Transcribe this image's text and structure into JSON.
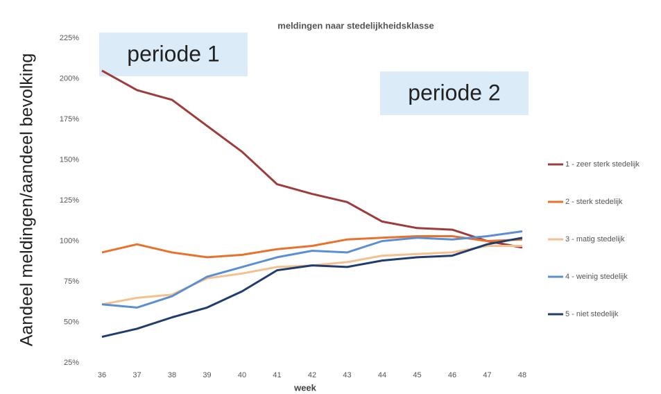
{
  "chart_data": {
    "type": "line",
    "title": "meldingen naar stedelijkheidsklasse",
    "x_label": "week",
    "y_label": "Aandeel meldingen/aandeel bevolking",
    "annotations": [
      "periode 1",
      "periode 2"
    ],
    "categories": [
      "36",
      "37",
      "38",
      "39",
      "40",
      "41",
      "42",
      "43",
      "44",
      "45",
      "46",
      "47",
      "48"
    ],
    "series": [
      {
        "name": "1 - zeer sterk stedelijk",
        "color": "#9e3b3b",
        "values": [
          205,
          193,
          187,
          171,
          155,
          135,
          129,
          124,
          112,
          108,
          107,
          100,
          96
        ]
      },
      {
        "name": "2 - sterk stedelijk",
        "color": "#e8722c",
        "values": [
          93,
          98,
          93,
          90,
          91.5,
          95,
          97,
          101,
          102,
          103,
          103,
          100,
          101
        ]
      },
      {
        "name": "3 - matig stedelijk",
        "color": "#f5c08f",
        "values": [
          61,
          65,
          67,
          77,
          80,
          84,
          85,
          87,
          91,
          92,
          93,
          97,
          97
        ]
      },
      {
        "name": "4 - weinig stedelijk",
        "color": "#5b8fd1",
        "values": [
          61,
          59,
          66,
          78,
          84,
          90,
          94,
          93,
          100,
          102,
          101,
          103,
          106
        ]
      },
      {
        "name": "5 - niet stedelijk",
        "color": "#1f3d6e",
        "values": [
          41,
          46,
          53,
          59,
          69,
          82,
          85,
          84,
          88,
          90,
          91,
          98,
          102
        ]
      }
    ],
    "ylim": [
      25,
      225
    ],
    "yticks": [
      {
        "value": 25,
        "label": "25%"
      },
      {
        "value": 50,
        "label": "50%"
      },
      {
        "value": 75,
        "label": "75%"
      },
      {
        "value": 100,
        "label": "100%"
      },
      {
        "value": 125,
        "label": "125%"
      },
      {
        "value": 150,
        "label": "150%"
      },
      {
        "value": 175,
        "label": "175%"
      },
      {
        "value": 200,
        "label": "200%"
      },
      {
        "value": 225,
        "label": "225%"
      }
    ],
    "grid": false,
    "legend": "right"
  }
}
